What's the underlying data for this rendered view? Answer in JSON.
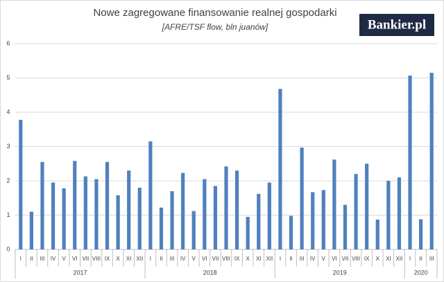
{
  "chart_data": {
    "type": "bar",
    "title": "Nowe zagregowane finansowanie  realnej  gospodarki",
    "subtitle": "[AFRE/TSF flow, bln juanów]",
    "logo": "Bankier.pl",
    "categories": [
      "I",
      "II",
      "III",
      "IV",
      "V",
      "VI",
      "VII",
      "VIII",
      "IX",
      "X",
      "XI",
      "XII",
      "I",
      "II",
      "III",
      "IV",
      "V",
      "VI",
      "VII",
      "VIII",
      "IX",
      "X",
      "XI",
      "XII",
      "I",
      "II",
      "III",
      "IV",
      "V",
      "VI",
      "VII",
      "VIII",
      "IX",
      "X",
      "XI",
      "XII",
      "I",
      "II",
      "III"
    ],
    "groups": [
      "2017",
      "2018",
      "2019",
      "2020"
    ],
    "values": [
      3.78,
      1.1,
      2.55,
      1.95,
      1.78,
      2.58,
      2.13,
      2.05,
      2.55,
      1.58,
      2.3,
      1.8,
      3.15,
      1.22,
      1.7,
      2.23,
      1.12,
      2.05,
      1.85,
      2.42,
      2.3,
      0.95,
      1.62,
      1.95,
      4.68,
      0.98,
      2.97,
      1.67,
      1.73,
      2.62,
      1.3,
      2.2,
      2.5,
      0.87,
      2.0,
      2.1,
      5.07,
      0.88,
      5.15
    ],
    "color": "#4f81bd",
    "ylim": [
      0,
      6
    ],
    "yticks": [
      0,
      1,
      2,
      3,
      4,
      5,
      6
    ],
    "grid": true
  }
}
